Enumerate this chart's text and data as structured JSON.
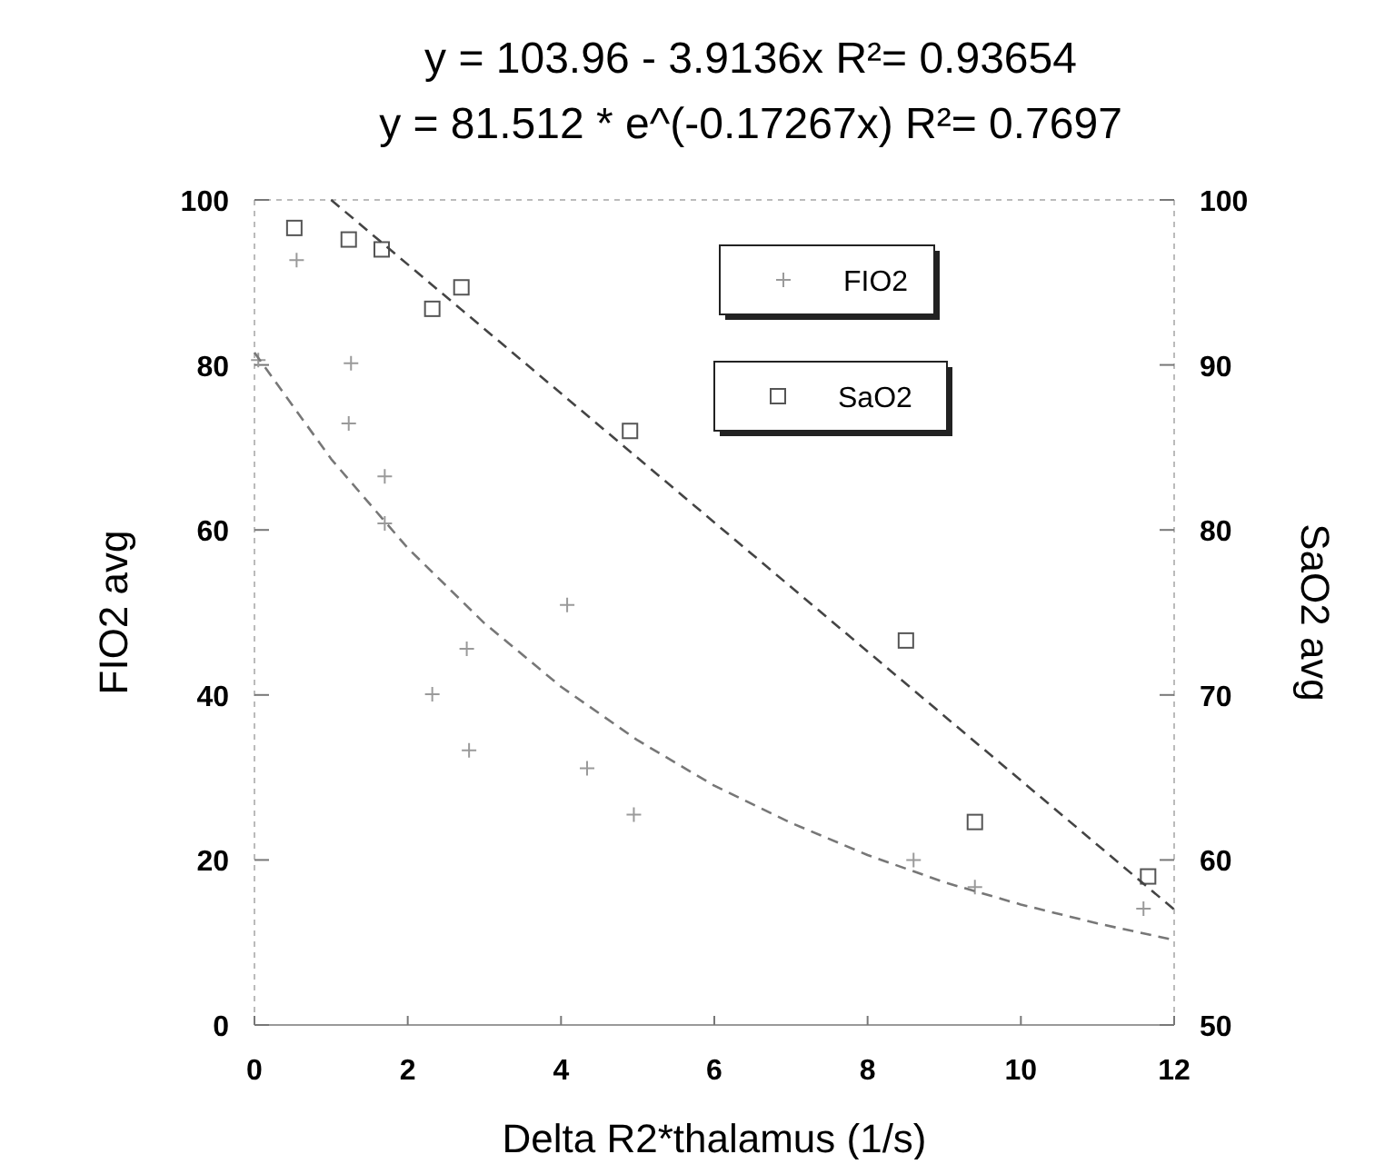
{
  "chart_data": {
    "type": "scatter",
    "title": "y = 103.96 - 3.9136x   R²= 0.93654",
    "subtitle": "y = 81.512 * e^(-0.17267x)   R²= 0.7697",
    "xlabel": "Delta R2*thalamus (1/s)",
    "ylabel": "FIO2 avg",
    "y2label": "SaO2 avg",
    "xlim": [
      0,
      12
    ],
    "xticks": [
      0,
      2,
      4,
      6,
      8,
      10,
      12
    ],
    "ylim": [
      0,
      100
    ],
    "yticks": [
      0,
      20,
      40,
      60,
      80,
      100
    ],
    "y2lim": [
      50,
      100
    ],
    "y2ticks": [
      50,
      60,
      70,
      80,
      90,
      100
    ],
    "legend": "top right",
    "grid": false,
    "series": [
      {
        "name": "FIO2",
        "marker": "cross",
        "color": "#9a9a9a",
        "x": [
          0.05,
          0.55,
          1.26,
          1.23,
          1.7,
          1.7,
          4.08,
          2.77,
          2.32,
          2.8,
          4.34,
          4.95,
          8.6,
          9.4,
          11.6
        ],
        "values": [
          80.6,
          92.7,
          80.2,
          72.9,
          66.5,
          60.8,
          50.9,
          45.6,
          40.1,
          33.3,
          31.1,
          25.5,
          20.0,
          16.7,
          14.1
        ]
      },
      {
        "name": "SaO2",
        "marker": "square",
        "axis": "y2",
        "color": "#555555",
        "x": [
          0.52,
          1.23,
          1.66,
          2.32,
          2.7,
          4.9,
          8.5,
          9.4,
          11.66
        ],
        "values": [
          98.3,
          97.6,
          97.0,
          93.4,
          94.7,
          86.0,
          73.3,
          62.3,
          59.0
        ]
      },
      {
        "type": "line",
        "axis": "y2",
        "line_style": "dashed",
        "marker": "none",
        "color": "#444444",
        "x": [
          1.0,
          12
        ],
        "values": [
          100.0,
          57.0
        ]
      },
      {
        "type": "line",
        "line_style": "dashed",
        "marker": "none",
        "color": "#777777",
        "x": [
          0,
          1,
          2,
          3,
          4,
          5,
          6,
          7,
          8,
          9,
          10,
          11,
          12
        ],
        "values": [
          81.5,
          68.6,
          57.8,
          48.7,
          41.0,
          34.5,
          29.0,
          24.5,
          20.6,
          17.3,
          14.6,
          12.3,
          10.3
        ]
      }
    ]
  }
}
